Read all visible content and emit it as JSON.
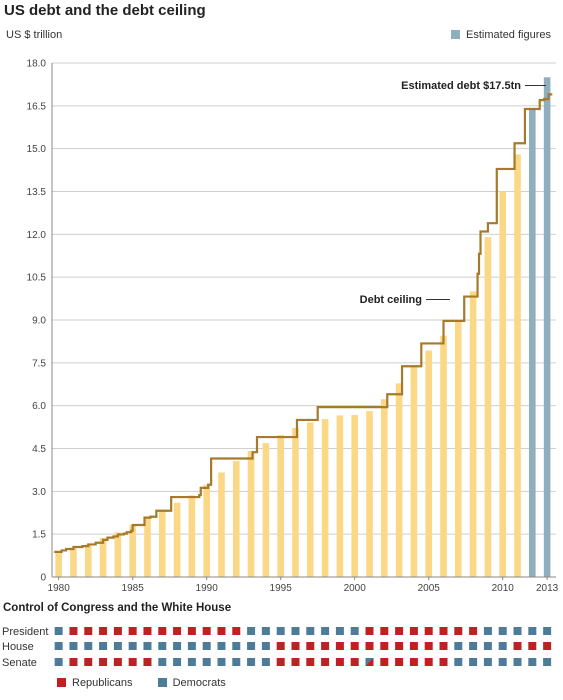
{
  "title": "US debt and the debt ceiling",
  "chart_data": {
    "type": "bar",
    "ylabel": "US $ trillion",
    "ylim": [
      0,
      18
    ],
    "yticks": [
      "0",
      "1.5",
      "3.0",
      "4.5",
      "6.0",
      "7.5",
      "9.0",
      "10.5",
      "12.0",
      "13.5",
      "15.0",
      "16.5",
      "18.0"
    ],
    "xticks": [
      "1980",
      "1985",
      "1990",
      "1995",
      "2000",
      "2005",
      "2010",
      "2013"
    ],
    "grid": true,
    "legend": "top-right",
    "x": [
      1980,
      1981,
      1982,
      1983,
      1984,
      1985,
      1986,
      1987,
      1988,
      1989,
      1990,
      1991,
      1992,
      1993,
      1994,
      1995,
      1996,
      1997,
      1998,
      1999,
      2000,
      2001,
      2002,
      2003,
      2004,
      2005,
      2006,
      2007,
      2008,
      2009,
      2010,
      2011,
      2012,
      2013
    ],
    "series": [
      {
        "name": "Debt",
        "values": [
          0.91,
          1.0,
          1.14,
          1.37,
          1.56,
          1.82,
          2.12,
          2.35,
          2.6,
          2.86,
          3.23,
          3.66,
          4.06,
          4.41,
          4.69,
          4.97,
          5.22,
          5.41,
          5.53,
          5.66,
          5.67,
          5.81,
          6.23,
          6.78,
          7.38,
          7.93,
          8.45,
          9.01,
          10.0,
          11.9,
          13.5,
          14.8,
          16.4,
          17.5
        ]
      },
      {
        "name": "Estimated figures",
        "from_year": 2012
      },
      {
        "name": "Debt ceiling",
        "steps": [
          [
            1979.7,
            0.88
          ],
          [
            1980.2,
            0.93
          ],
          [
            1980.5,
            0.98
          ],
          [
            1981.0,
            1.05
          ],
          [
            1981.6,
            1.08
          ],
          [
            1982.0,
            1.14
          ],
          [
            1982.5,
            1.2
          ],
          [
            1983.0,
            1.3
          ],
          [
            1983.3,
            1.38
          ],
          [
            1983.7,
            1.42
          ],
          [
            1984.0,
            1.49
          ],
          [
            1984.4,
            1.52
          ],
          [
            1984.6,
            1.57
          ],
          [
            1984.9,
            1.62
          ],
          [
            1985.0,
            1.82
          ],
          [
            1985.8,
            2.08
          ],
          [
            1986.2,
            2.11
          ],
          [
            1986.6,
            2.32
          ],
          [
            1987.6,
            2.8
          ],
          [
            1989.5,
            2.87
          ],
          [
            1989.6,
            3.12
          ],
          [
            1989.8,
            3.12
          ],
          [
            1990.1,
            3.23
          ],
          [
            1990.3,
            4.15
          ],
          [
            1993.1,
            4.37
          ],
          [
            1993.4,
            4.9
          ],
          [
            1996.1,
            5.5
          ],
          [
            1997.5,
            5.95
          ],
          [
            2002.2,
            6.4
          ],
          [
            2003.2,
            7.38
          ],
          [
            2004.5,
            8.18
          ],
          [
            2006.0,
            8.97
          ],
          [
            2007.4,
            9.82
          ],
          [
            2008.3,
            10.62
          ],
          [
            2008.4,
            11.32
          ],
          [
            2008.5,
            12.1
          ],
          [
            2009.0,
            12.39
          ],
          [
            2009.6,
            14.29
          ],
          [
            2010.8,
            15.19
          ],
          [
            2011.5,
            16.39
          ],
          [
            2012.5,
            16.7
          ],
          [
            2012.8,
            16.74
          ],
          [
            2013.1,
            16.9
          ]
        ]
      }
    ],
    "annotations": [
      "Estimated debt $17.5tn",
      "Debt ceiling"
    ]
  },
  "control": {
    "title": "Control of Congress and the White House",
    "rows": [
      {
        "label": "President",
        "parties": [
          "D",
          "R",
          "R",
          "R",
          "R",
          "R",
          "R",
          "R",
          "R",
          "R",
          "R",
          "R",
          "R",
          "D",
          "D",
          "D",
          "D",
          "D",
          "D",
          "D",
          "D",
          "R",
          "R",
          "R",
          "R",
          "R",
          "R",
          "R",
          "R",
          "D",
          "D",
          "D",
          "D",
          "D"
        ]
      },
      {
        "label": "House",
        "parties": [
          "D",
          "D",
          "D",
          "D",
          "D",
          "D",
          "D",
          "D",
          "D",
          "D",
          "D",
          "D",
          "D",
          "D",
          "D",
          "R",
          "R",
          "R",
          "R",
          "R",
          "R",
          "R",
          "R",
          "R",
          "R",
          "R",
          "R",
          "D",
          "D",
          "D",
          "D",
          "R",
          "R",
          "R"
        ]
      },
      {
        "label": "Senate",
        "parties": [
          "D",
          "R",
          "R",
          "R",
          "R",
          "R",
          "R",
          "D",
          "D",
          "D",
          "D",
          "D",
          "D",
          "D",
          "D",
          "R",
          "R",
          "R",
          "R",
          "R",
          "R",
          "M",
          "R",
          "R",
          "R",
          "R",
          "R",
          "D",
          "D",
          "D",
          "D",
          "D",
          "D",
          "D"
        ]
      }
    ],
    "legend": [
      "Republicans",
      "Democrats"
    ]
  },
  "colors": {
    "debt_bar": "#fad886",
    "estimated_bar": "#8fafbe",
    "ceiling_line": "#a67a2a",
    "grid": "#cfcfcf",
    "republican": "#c01f24",
    "democrat": "#4e7c98"
  }
}
